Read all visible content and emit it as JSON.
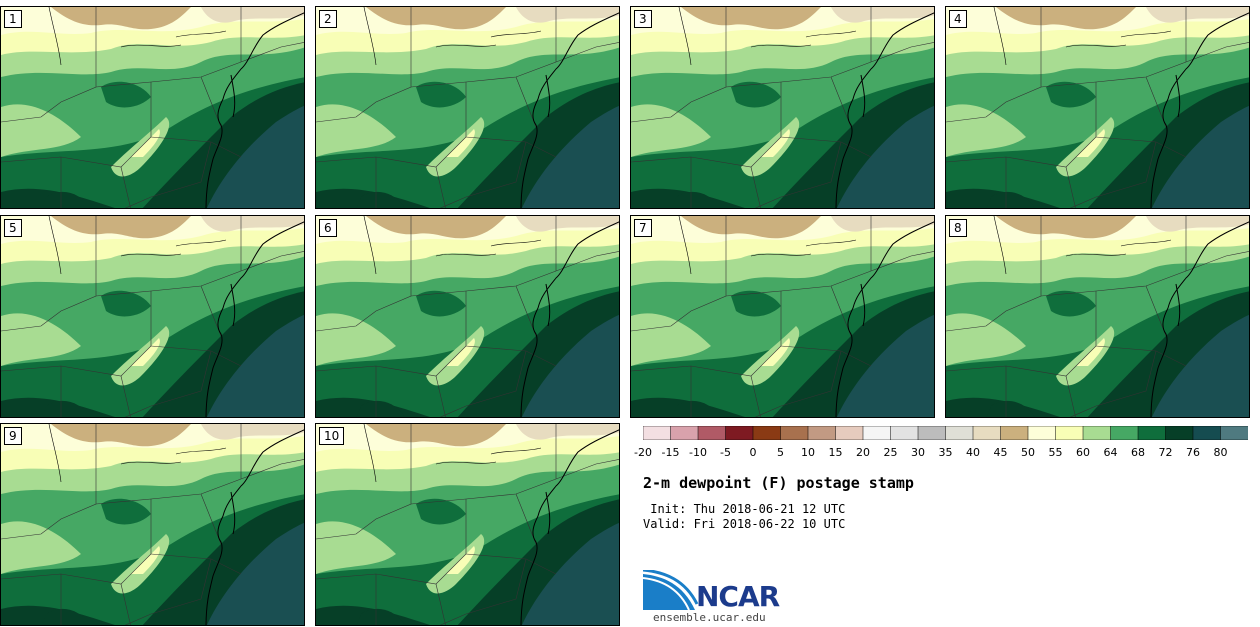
{
  "panels": [
    {
      "label": "1"
    },
    {
      "label": "2"
    },
    {
      "label": "3"
    },
    {
      "label": "4"
    },
    {
      "label": "5"
    },
    {
      "label": "6"
    },
    {
      "label": "7"
    },
    {
      "label": "8"
    },
    {
      "label": "9"
    },
    {
      "label": "10"
    }
  ],
  "colorbar": {
    "ticks": [
      "-20",
      "-15",
      "-10",
      "-5",
      "0",
      "5",
      "10",
      "15",
      "20",
      "25",
      "30",
      "35",
      "40",
      "45",
      "50",
      "55",
      "60",
      "64",
      "68",
      "72",
      "76",
      "80"
    ],
    "colors": [
      "#f3dfe2",
      "#d9a2ac",
      "#b05a66",
      "#7e1a22",
      "#8a3a14",
      "#a8714e",
      "#c29a83",
      "#e6cbbe",
      "#f5f5f5",
      "#e2e2e2",
      "#bcbcbc",
      "#dfdfd6",
      "#e7dcc0",
      "#cbb07e",
      "#fdfed9",
      "#f8feb6",
      "#a8dc92",
      "#46a864",
      "#0f6e3c",
      "#063f27",
      "#154c50",
      "#4f7a80"
    ]
  },
  "title": "2-m dewpoint (F) postage stamp",
  "init": " Init: Thu 2018-06-21 12 UTC",
  "valid": "Valid: Fri 2018-06-22 10 UTC",
  "logo": {
    "text": "NCAR",
    "site": "ensemble.ucar.edu"
  }
}
